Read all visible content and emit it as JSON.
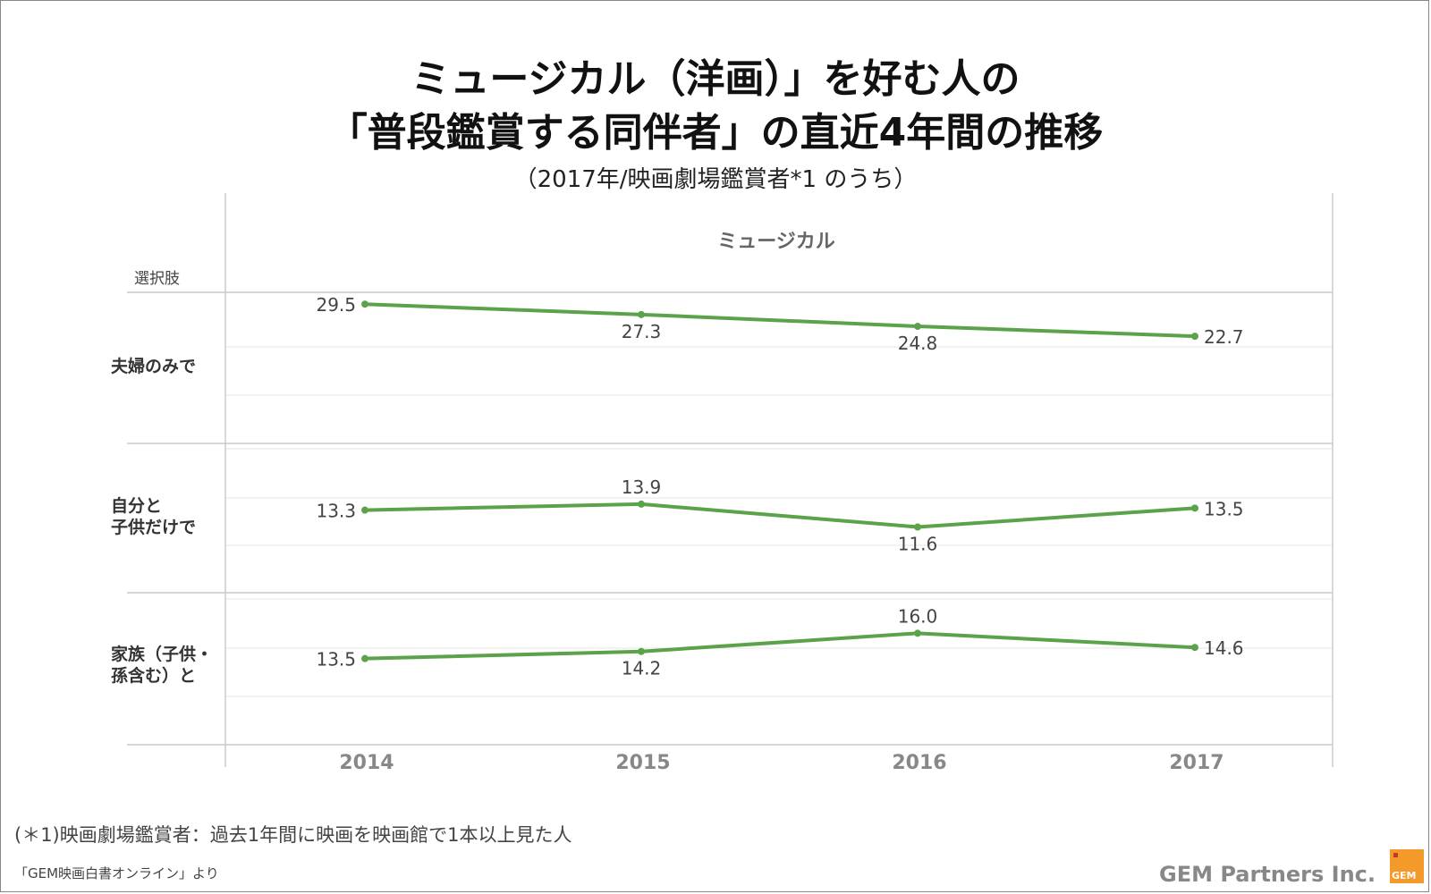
{
  "header": {
    "title_line1": "ミュージカル（洋画）」を好む人の",
    "title_line2": "「普段鑑賞する同伴者」の直近4年間の推移",
    "subtitle": "（2017年/映画劇場鑑賞者*1 のうち）"
  },
  "chart_data": {
    "type": "line",
    "facet_title": "ミュージカル",
    "row_header": "選択肢",
    "x": [
      "2014",
      "2015",
      "2016",
      "2017"
    ],
    "series": [
      {
        "name": "夫婦のみで",
        "values": [
          29.5,
          27.3,
          24.8,
          22.7
        ]
      },
      {
        "name": "自分と\n子供だけで",
        "values": [
          13.3,
          13.9,
          11.6,
          13.5
        ]
      },
      {
        "name": "家族（子供・\n孫含む）と",
        "values": [
          13.5,
          14.2,
          16.0,
          14.6
        ]
      }
    ],
    "value_labels": [
      [
        "29.5",
        "27.3",
        "24.8",
        "22.7"
      ],
      [
        "13.3",
        "13.9",
        "11.6",
        "13.5"
      ],
      [
        "13.5",
        "14.2",
        "16.0",
        "14.6"
      ]
    ],
    "line_color": "#5aa34a",
    "grid": true
  },
  "footer": {
    "footnote": "(＊1)映画劇場鑑賞者：過去1年間に映画を映画館で1本以上見た人",
    "source": "「GEM映画白書オンライン」より",
    "brand": "GEM Partners Inc.",
    "logo_text": "GEM"
  }
}
